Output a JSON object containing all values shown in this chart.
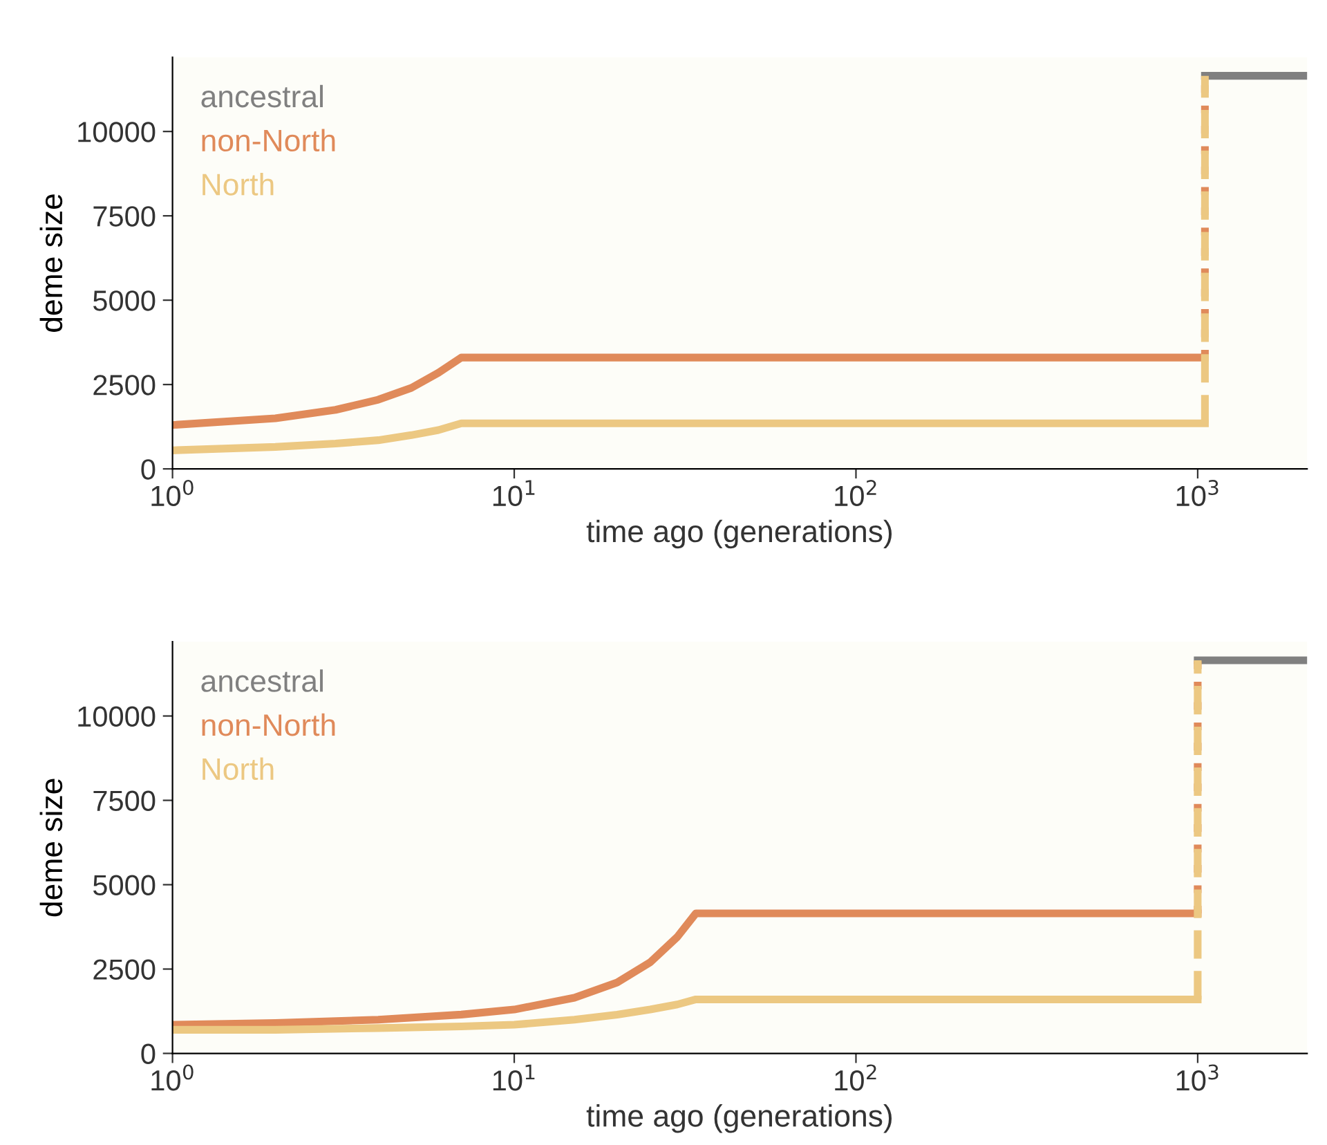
{
  "chart_data": [
    {
      "type": "line",
      "xlabel": "time ago (generations)",
      "ylabel": "deme size",
      "log": "x",
      "xlim": [
        1,
        2090
      ],
      "ylim": [
        0,
        12200
      ],
      "xticks": [
        {
          "value": 1,
          "label": "10$^{0}$"
        },
        {
          "value": 10,
          "label": "10$^{1}$"
        },
        {
          "value": 100,
          "label": "10$^{2}$"
        },
        {
          "value": 1000,
          "label": "10$^{3}$"
        }
      ],
      "yticks": [
        0,
        2500,
        5000,
        7500,
        10000
      ],
      "grid": false,
      "legend": "top left",
      "marker": "none",
      "series": [
        {
          "name": "ancestral",
          "color": "#808080",
          "x": [
            1050,
            2090
          ],
          "values": [
            11650,
            11650
          ]
        },
        {
          "name": "non-North",
          "color": "#e08a5a",
          "x": [
            1,
            2,
            3,
            4,
            5,
            6,
            7,
            1050
          ],
          "values": [
            1300,
            1500,
            1750,
            2050,
            2400,
            2850,
            3300,
            3300
          ]
        },
        {
          "name": "North",
          "color": "#ecc882",
          "x": [
            1,
            2,
            3,
            4,
            5,
            6,
            7,
            1050
          ],
          "values": [
            550,
            650,
            750,
            850,
            1000,
            1150,
            1350,
            1350
          ]
        },
        {
          "color": "#e08a5a",
          "line_style": "dotted",
          "x": [
            1050,
            1050
          ],
          "values": [
            3300,
            11650
          ]
        },
        {
          "color": "#ecc882",
          "line_style": "dashed",
          "x": [
            1050,
            1050
          ],
          "values": [
            1350,
            11650
          ]
        }
      ]
    },
    {
      "type": "line",
      "xlabel": "time ago (generations)",
      "ylabel": "deme size",
      "log": "x",
      "xlim": [
        1,
        2090
      ],
      "ylim": [
        0,
        12200
      ],
      "xticks": [
        {
          "value": 1,
          "label": "10$^{0}$"
        },
        {
          "value": 10,
          "label": "10$^{1}$"
        },
        {
          "value": 100,
          "label": "10$^{2}$"
        },
        {
          "value": 1000,
          "label": "10$^{3}$"
        }
      ],
      "yticks": [
        0,
        2500,
        5000,
        7500,
        10000
      ],
      "grid": false,
      "legend": "top left",
      "marker": "none",
      "series": [
        {
          "name": "ancestral",
          "color": "#808080",
          "x": [
            1000,
            2090
          ],
          "values": [
            11650,
            11650
          ]
        },
        {
          "name": "non-North",
          "color": "#e08a5a",
          "x": [
            1,
            2,
            4,
            7,
            10,
            15,
            20,
            25,
            30,
            34,
            1000
          ],
          "values": [
            850,
            900,
            1000,
            1150,
            1300,
            1650,
            2100,
            2700,
            3450,
            4150,
            4150
          ]
        },
        {
          "name": "North",
          "color": "#ecc882",
          "x": [
            1,
            2,
            4,
            7,
            10,
            15,
            20,
            25,
            30,
            34,
            1000
          ],
          "values": [
            700,
            700,
            750,
            800,
            850,
            1000,
            1150,
            1300,
            1450,
            1600,
            1600
          ]
        },
        {
          "color": "#e08a5a",
          "line_style": "dotted",
          "x": [
            1000,
            1000
          ],
          "values": [
            4150,
            11650
          ]
        },
        {
          "color": "#ecc882",
          "line_style": "dashed",
          "x": [
            1000,
            1000
          ],
          "values": [
            1600,
            11650
          ]
        }
      ]
    }
  ]
}
